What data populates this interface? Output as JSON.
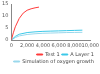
{
  "chart_data": {
    "type": "line",
    "series": [
      {
        "name": "Test 1",
        "color": "#ff3b3b",
        "x": [
          0,
          250,
          500,
          1000,
          1500,
          2000,
          2500,
          3000,
          3500
        ],
        "values": [
          0,
          3,
          5.5,
          9,
          11.2,
          12.4,
          13,
          13.4,
          13.7
        ]
      },
      {
        "name": "A Layer 1",
        "color": "#3cc8e8",
        "x": [
          0,
          500,
          1000,
          2000,
          3000,
          4000,
          5000,
          6000,
          7000,
          8000,
          9000
        ],
        "values": [
          0,
          1.5,
          2.4,
          3.1,
          3.4,
          3.6,
          3.7,
          3.8,
          3.9,
          4.0,
          4.1
        ]
      },
      {
        "name": "Simulation of oxygen growth",
        "color": "#9ad8ec",
        "x": [
          0,
          500,
          1000,
          2000,
          3000,
          4000,
          5000,
          6000,
          7000,
          8000,
          9000
        ],
        "values": [
          0,
          1.0,
          1.7,
          2.3,
          2.6,
          2.8,
          2.9,
          3.0,
          3.1,
          3.15,
          3.2
        ]
      }
    ],
    "xlim": [
      0,
      10000
    ],
    "xticks": [
      0,
      2000,
      4000,
      6000,
      8000,
      10000
    ],
    "ylim": [
      0,
      15
    ],
    "yticks": [
      0,
      5,
      10,
      15
    ],
    "legend": "bottom",
    "grid": false
  }
}
